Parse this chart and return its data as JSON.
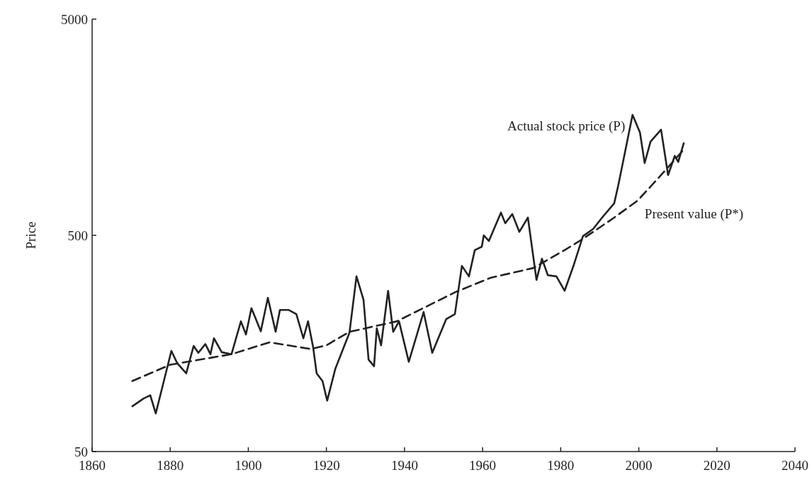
{
  "chart_data": {
    "type": "line",
    "ylabel": "Price",
    "log": "y",
    "xlim": [
      1860,
      2040
    ],
    "xticks": [
      1860,
      1880,
      1900,
      1920,
      1940,
      1960,
      1980,
      2000,
      2020,
      2040
    ],
    "ylim": [
      50,
      5000
    ],
    "yticks": [
      50,
      500,
      5000
    ],
    "grid": false,
    "marker": "none",
    "series": [
      {
        "name": "Actual stock price (P)",
        "color": "#222222",
        "line_style": "solid",
        "x": [
          1870.3,
          1873.2,
          1874.9,
          1876.3,
          1880.3,
          1881.8,
          1884.1,
          1886,
          1887.2,
          1889,
          1890.3,
          1891.2,
          1893.2,
          1895.7,
          1898.1,
          1899.4,
          1900.8,
          1903.2,
          1905,
          1907,
          1908.1,
          1910.3,
          1912.3,
          1914.1,
          1915.3,
          1916.6,
          1917.5,
          1919,
          1920.2,
          1922.3,
          1925.9,
          1927.7,
          1929.5,
          1930.8,
          1932.2,
          1932.9,
          1934,
          1935.8,
          1937.1,
          1938.6,
          1941.1,
          1944.9,
          1947.1,
          1950.7,
          1952.9,
          1954.7,
          1956.5,
          1958,
          1959.8,
          1960.3,
          1961.6,
          1964.7,
          1965.8,
          1967.6,
          1969.4,
          1971.6,
          1973.8,
          1975.2,
          1976.7,
          1978.9,
          1981,
          1983.4,
          1985.7,
          1988.3,
          1990.6,
          1993.7,
          1994.8,
          1998.4,
          2000.3,
          2001.5,
          2003,
          2005.7,
          2007.5,
          2009.2,
          2010.1,
          2011.5
        ],
        "values": [
          81,
          88,
          91,
          75,
          146,
          128,
          115,
          154,
          143,
          157,
          141,
          167,
          144,
          141,
          200,
          174,
          230,
          180,
          257,
          179,
          226,
          226,
          216,
          167,
          200,
          152,
          115,
          106,
          86,
          121,
          177,
          323,
          252,
          133,
          124,
          186,
          155,
          277,
          179,
          200,
          130,
          221,
          143,
          205,
          216,
          361,
          323,
          427,
          443,
          500,
          471,
          637,
          569,
          627,
          519,
          604,
          311,
          390,
          327,
          323,
          277,
          367,
          496,
          535,
          604,
          703,
          861,
          1803,
          1494,
          1080,
          1355,
          1541,
          950,
          1165,
          1093,
          1334
        ]
      },
      {
        "name": "Present value (P*)",
        "color": "#222222",
        "line_style": "dashed",
        "x": [
          1870.3,
          1880,
          1895.7,
          1905.4,
          1916,
          1920,
          1925.9,
          1938,
          1953,
          1962,
          1973,
          1981,
          1985.7,
          1993.7,
          1999.7,
          2005.7,
          2011.2
        ],
        "values": [
          106,
          126,
          141,
          160,
          149,
          155,
          179,
          200,
          273,
          318,
          353,
          427,
          482,
          604,
          724,
          950,
          1228
        ]
      }
    ]
  }
}
